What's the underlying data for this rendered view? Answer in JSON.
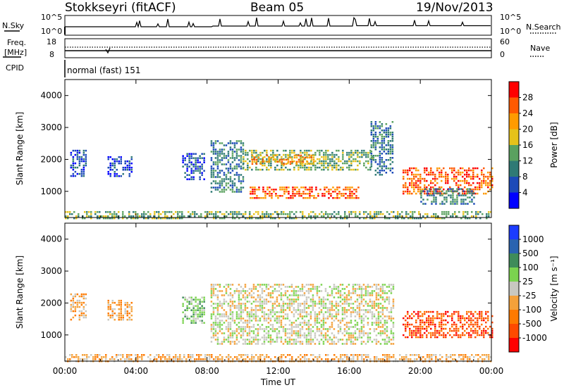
{
  "header": {
    "station": "Stokkseyri (fitACF)",
    "beam": "Beam 05",
    "date": "19/Nov/2013"
  },
  "summary": {
    "nsky_label": "N.Sky",
    "nsearch_label": "N.Search",
    "nsky_ticks": [
      "10^5",
      "10^0"
    ],
    "nsearch_ticks": [
      "10^5",
      "10^0"
    ],
    "freq_label_line1": "Freq.",
    "freq_label_line2": "[MHz]",
    "freq_ticks": [
      "18",
      "8"
    ],
    "nave_label": "Nave",
    "nave_ticks": [
      "60",
      "0"
    ],
    "cpid_label": "CPID",
    "cpid_value": "normal (fast) 151"
  },
  "colors": {
    "power": [
      "#0000ff",
      "#1c4ab8",
      "#2f7a75",
      "#5aa15f",
      "#e6c21a",
      "#ff9b00",
      "#ff5a00",
      "#ff0000"
    ],
    "velocity": [
      "#1c3cff",
      "#2a63b0",
      "#3f8c5a",
      "#7bd34f",
      "#c8c8c0",
      "#f4a13a",
      "#ff7a00",
      "#ff4a00",
      "#ff0000"
    ],
    "ground": "#c8c8c0"
  },
  "chart_data": [
    {
      "type": "heatmap",
      "panel": "power",
      "ylabel": "Slant Range [km]",
      "ylim": [
        180,
        4500
      ],
      "yticks": [
        1000,
        2000,
        3000,
        4000
      ],
      "xlim": [
        0,
        24
      ],
      "colorbar": {
        "label": "Power [dB]",
        "boundaries": [
          0,
          4,
          8,
          12,
          16,
          20,
          24,
          28,
          32
        ],
        "tick_labels": [
          "28",
          "24",
          "20",
          "16",
          "12",
          "8",
          "4"
        ]
      },
      "regions": [
        {
          "x": [
            0.3,
            1.2
          ],
          "y": [
            1500,
            2300
          ],
          "level": 1
        },
        {
          "x": [
            2.4,
            3.8
          ],
          "y": [
            1500,
            2100
          ],
          "level": 1
        },
        {
          "x": [
            6.6,
            7.8
          ],
          "y": [
            1400,
            2200
          ],
          "level": 1
        },
        {
          "x": [
            8.2,
            10.0
          ],
          "y": [
            1000,
            2600
          ],
          "level": 2
        },
        {
          "x": [
            10.0,
            17.3
          ],
          "y": [
            1700,
            2300
          ],
          "level": 3
        },
        {
          "x": [
            10.4,
            16.5
          ],
          "y": [
            780,
            1150
          ],
          "level": 6
        },
        {
          "x": [
            10.5,
            14.0
          ],
          "y": [
            1850,
            2150
          ],
          "level": 5
        },
        {
          "x": [
            17.2,
            18.5
          ],
          "y": [
            1500,
            3200
          ],
          "level": 2
        },
        {
          "x": [
            19.0,
            24.0
          ],
          "y": [
            950,
            1750
          ],
          "level": 6
        },
        {
          "x": [
            20.0,
            23.0
          ],
          "y": [
            600,
            1100
          ],
          "level": 2
        },
        {
          "x": [
            0.0,
            24.0
          ],
          "y": [
            180,
            380
          ],
          "level": 3
        }
      ]
    },
    {
      "type": "heatmap",
      "panel": "velocity",
      "ylabel": "Slant Range [km]",
      "ylim": [
        180,
        4500
      ],
      "yticks": [
        1000,
        2000,
        3000,
        4000
      ],
      "xlim": [
        0,
        24
      ],
      "xlabel": "Time UT",
      "xticks": [
        "00:00",
        "04:00",
        "08:00",
        "12:00",
        "16:00",
        "20:00",
        "00:00"
      ],
      "colorbar": {
        "label": "Velocity [m s⁻¹]",
        "tick_labels": [
          "1000",
          "500",
          "100",
          "25",
          "-25",
          "-100",
          "-500",
          "-1000"
        ]
      },
      "regions": [
        {
          "x": [
            0.3,
            1.2
          ],
          "y": [
            1500,
            2300
          ],
          "level": 5
        },
        {
          "x": [
            2.4,
            3.8
          ],
          "y": [
            1500,
            2100
          ],
          "level": 5
        },
        {
          "x": [
            6.6,
            7.8
          ],
          "y": [
            1400,
            2200
          ],
          "level": 3
        },
        {
          "x": [
            8.2,
            18.5
          ],
          "y": [
            700,
            2600
          ],
          "level": 4
        },
        {
          "x": [
            19.0,
            24.0
          ],
          "y": [
            900,
            1750
          ],
          "level": 7
        },
        {
          "x": [
            0.0,
            24.0
          ],
          "y": [
            180,
            400
          ],
          "level": 5
        }
      ]
    }
  ]
}
